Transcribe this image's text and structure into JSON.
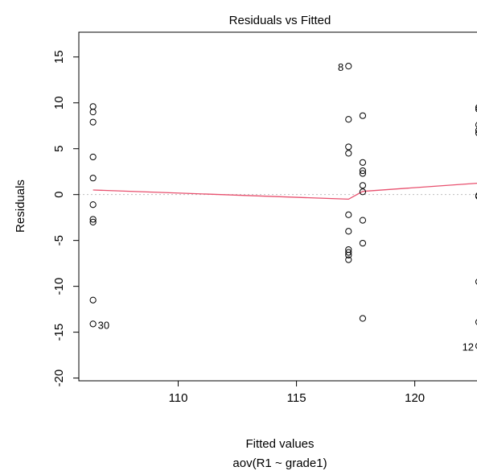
{
  "chart_data": {
    "type": "scatter",
    "title": "Residuals vs Fitted",
    "xlabel": "Fitted values",
    "subtitle": "aov(R1 ~ grade1)",
    "ylabel": "Residuals",
    "xlim": [
      105.8,
      122.8
    ],
    "ylim": [
      -20.3,
      17.7
    ],
    "xticks": [
      110,
      115,
      120
    ],
    "yticks": [
      -20,
      -15,
      -10,
      -5,
      0,
      5,
      10,
      15
    ],
    "grid": false,
    "reference_line": {
      "y": 0,
      "style": "dotted",
      "color": "#bfbfbf"
    },
    "smooth_color": "#e8506e",
    "points": [
      {
        "x": 106.4,
        "y": 9.6
      },
      {
        "x": 106.4,
        "y": 9.0
      },
      {
        "x": 106.4,
        "y": 7.9
      },
      {
        "x": 106.4,
        "y": 4.1
      },
      {
        "x": 106.4,
        "y": 1.8
      },
      {
        "x": 106.4,
        "y": -1.1
      },
      {
        "x": 106.4,
        "y": -2.7
      },
      {
        "x": 106.4,
        "y": -3.0
      },
      {
        "x": 106.4,
        "y": -11.5
      },
      {
        "x": 106.4,
        "y": -14.1
      },
      {
        "x": 117.2,
        "y": 14.0
      },
      {
        "x": 117.2,
        "y": 8.2
      },
      {
        "x": 117.2,
        "y": 5.2
      },
      {
        "x": 117.2,
        "y": 4.5
      },
      {
        "x": 117.2,
        "y": -2.2
      },
      {
        "x": 117.2,
        "y": -4.0
      },
      {
        "x": 117.2,
        "y": -6.0
      },
      {
        "x": 117.2,
        "y": -6.3
      },
      {
        "x": 117.2,
        "y": -6.6
      },
      {
        "x": 117.2,
        "y": -7.1
      },
      {
        "x": 117.8,
        "y": 8.6
      },
      {
        "x": 117.8,
        "y": 3.5
      },
      {
        "x": 117.8,
        "y": 2.6
      },
      {
        "x": 117.8,
        "y": 2.3
      },
      {
        "x": 117.8,
        "y": 1.0
      },
      {
        "x": 117.8,
        "y": 0.3
      },
      {
        "x": 117.8,
        "y": -2.8
      },
      {
        "x": 117.8,
        "y": -5.3
      },
      {
        "x": 117.8,
        "y": -13.5
      },
      {
        "x": 122.7,
        "y": 9.5
      },
      {
        "x": 122.7,
        "y": 9.3
      },
      {
        "x": 122.7,
        "y": 7.6
      },
      {
        "x": 122.7,
        "y": 7.0
      },
      {
        "x": 122.7,
        "y": 6.7
      },
      {
        "x": 122.7,
        "y": -0.1
      },
      {
        "x": 122.7,
        "y": -0.2
      },
      {
        "x": 122.7,
        "y": -9.5
      },
      {
        "x": 122.7,
        "y": -13.9
      },
      {
        "x": 122.7,
        "y": -16.5
      }
    ],
    "smooth_line": [
      {
        "x": 106.4,
        "y": 0.5
      },
      {
        "x": 117.2,
        "y": -0.5
      },
      {
        "x": 117.8,
        "y": 0.35
      },
      {
        "x": 122.7,
        "y": 1.25
      }
    ],
    "point_labels": [
      {
        "text": "8",
        "x": 117.2,
        "y": 14.0,
        "side": "left"
      },
      {
        "text": "30",
        "x": 106.4,
        "y": -14.1,
        "side": "right"
      },
      {
        "text": "12",
        "x": 122.7,
        "y": -16.5,
        "side": "left"
      }
    ]
  }
}
